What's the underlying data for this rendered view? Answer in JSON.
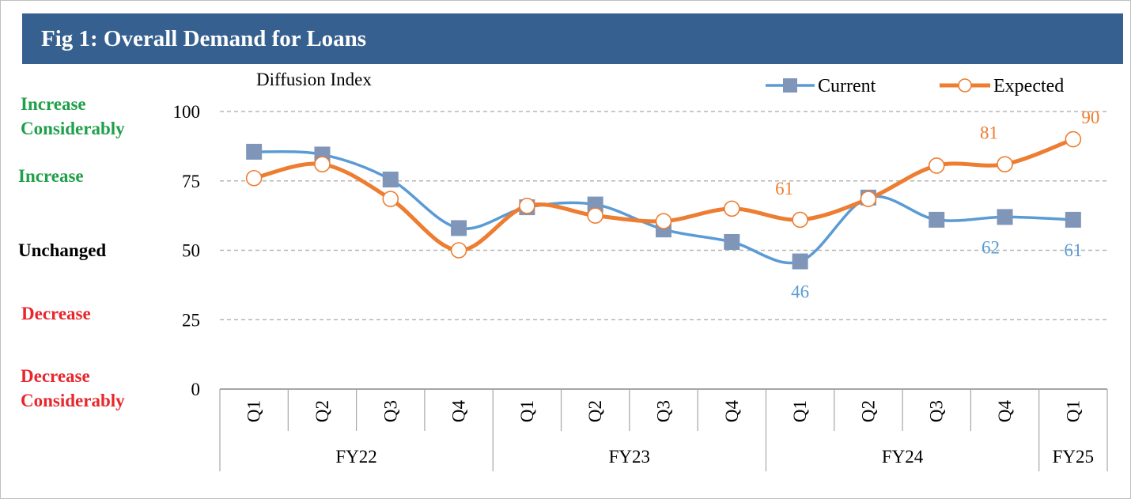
{
  "title": "Fig 1: Overall Demand for Loans",
  "y_unit_label": "Diffusion Index",
  "categories_left": [
    {
      "text": "Increase Considerably",
      "lines": [
        "Increase",
        "Considerably"
      ],
      "color": "#1fa04a"
    },
    {
      "text": "Increase",
      "lines": [
        "Increase"
      ],
      "color": "#1fa04a"
    },
    {
      "text": "Unchanged",
      "lines": [
        "Unchanged"
      ],
      "color": "#000000"
    },
    {
      "text": "Decrease",
      "lines": [
        "Decrease"
      ],
      "color": "#e8262c"
    },
    {
      "text": "Decrease Considerably",
      "lines": [
        "Decrease",
        "Considerably"
      ],
      "color": "#e8262c"
    }
  ],
  "colors": {
    "current": "#5b9bd5",
    "current_marker": "#7f96b9",
    "expected": "#ed7d31",
    "title_bg": "#36608f"
  },
  "chart_data": {
    "type": "line",
    "y_ticks": [
      0,
      25,
      50,
      75,
      100
    ],
    "ylim": [
      0,
      100
    ],
    "grid": true,
    "legend_position": "top-right",
    "quarters": [
      "Q1",
      "Q2",
      "Q3",
      "Q4",
      "Q1",
      "Q2",
      "Q3",
      "Q4",
      "Q1",
      "Q2",
      "Q3",
      "Q4",
      "Q1"
    ],
    "years": [
      {
        "label": "FY22",
        "count": 4
      },
      {
        "label": "FY23",
        "count": 4
      },
      {
        "label": "FY24",
        "count": 4
      },
      {
        "label": "FY25",
        "count": 1
      }
    ],
    "series": [
      {
        "name": "Current",
        "marker": "square",
        "values": [
          85.5,
          84.5,
          75.5,
          58,
          65.5,
          66.5,
          57.5,
          53,
          46,
          69,
          61,
          62,
          61
        ]
      },
      {
        "name": "Expected",
        "marker": "circle",
        "values": [
          76,
          81,
          68.5,
          50,
          66,
          62.5,
          60.5,
          65,
          61,
          68.5,
          80.5,
          81,
          90
        ]
      }
    ],
    "data_labels": [
      {
        "series": "Current",
        "index": 8,
        "text": "46",
        "pos": "below"
      },
      {
        "series": "Current",
        "index": 11,
        "text": "62",
        "pos": "below-left"
      },
      {
        "series": "Current",
        "index": 12,
        "text": "61",
        "pos": "below"
      },
      {
        "series": "Expected",
        "index": 8,
        "text": "61",
        "pos": "above-left"
      },
      {
        "series": "Expected",
        "index": 11,
        "text": "81",
        "pos": "above-left"
      },
      {
        "series": "Expected",
        "index": 12,
        "text": "90",
        "pos": "above-right"
      }
    ]
  }
}
